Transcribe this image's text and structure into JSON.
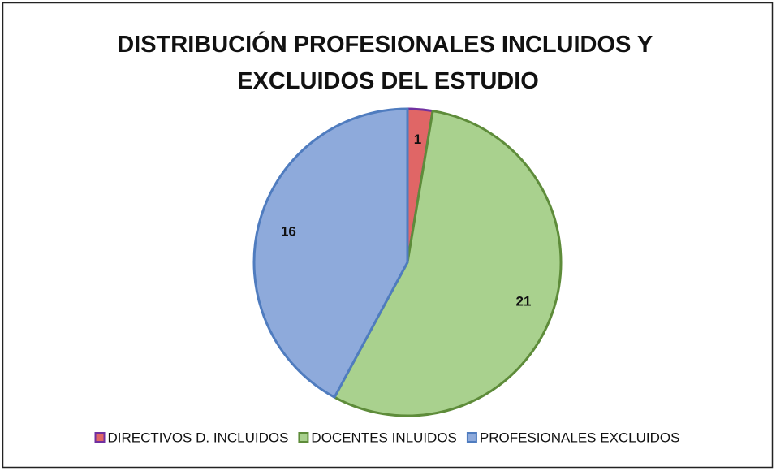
{
  "chart_data": {
    "type": "pie",
    "title": "DISTRIBUCIÓN PROFESIONALES INCLUIDOS Y EXCLUIDOS DEL ESTUDIO",
    "categories": [
      "DIRECTIVOS D. INCLUIDOS",
      "DOCENTES INLUIDOS",
      "PROFESIONALES EXCLUIDOS"
    ],
    "values": [
      1,
      21,
      16
    ],
    "colors": [
      "#e06666",
      "#a9d18e",
      "#8eaadb"
    ],
    "edge_colors": [
      "#7030a0",
      "#5e8c3a",
      "#4f7cbf"
    ],
    "legend": "bottom"
  }
}
